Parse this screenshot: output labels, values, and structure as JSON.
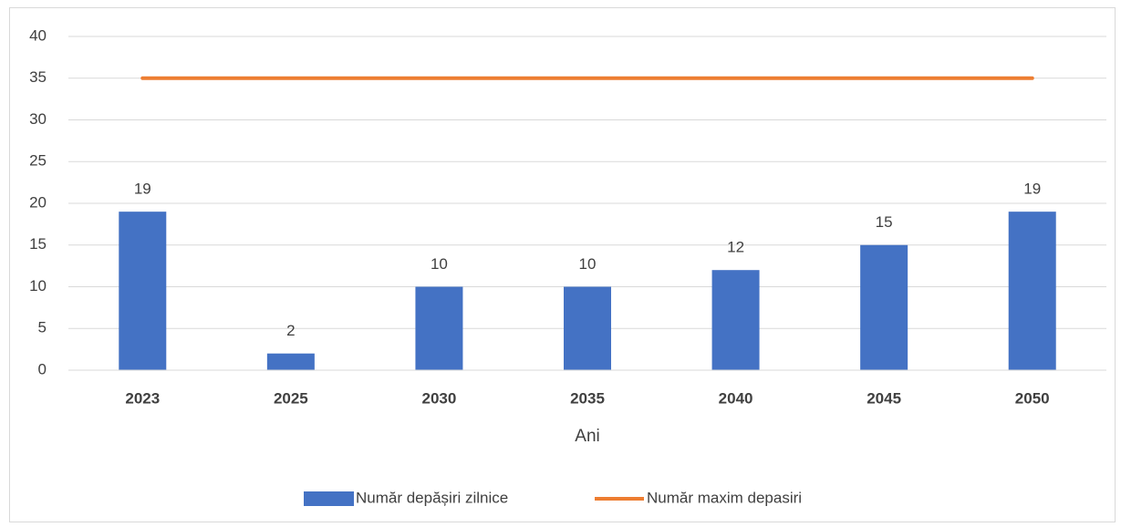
{
  "chart_data": {
    "type": "bar",
    "x_label": "Ani",
    "categories": [
      "2023",
      "2025",
      "2030",
      "2035",
      "2040",
      "2045",
      "2050"
    ],
    "series": [
      {
        "name": "Număr depășiri zilnice",
        "type": "bar",
        "color": "#4472c4",
        "values": [
          19,
          2,
          10,
          10,
          12,
          15,
          19
        ]
      },
      {
        "name": "Număr maxim depasiri",
        "type": "line",
        "color": "#ed7d31",
        "values": [
          35,
          35,
          35,
          35,
          35,
          35,
          35
        ]
      }
    ],
    "ylim": [
      0,
      40
    ],
    "yticks": [
      0,
      5,
      10,
      15,
      20,
      25,
      30,
      35,
      40
    ],
    "grid": true,
    "legend": "bottom"
  }
}
